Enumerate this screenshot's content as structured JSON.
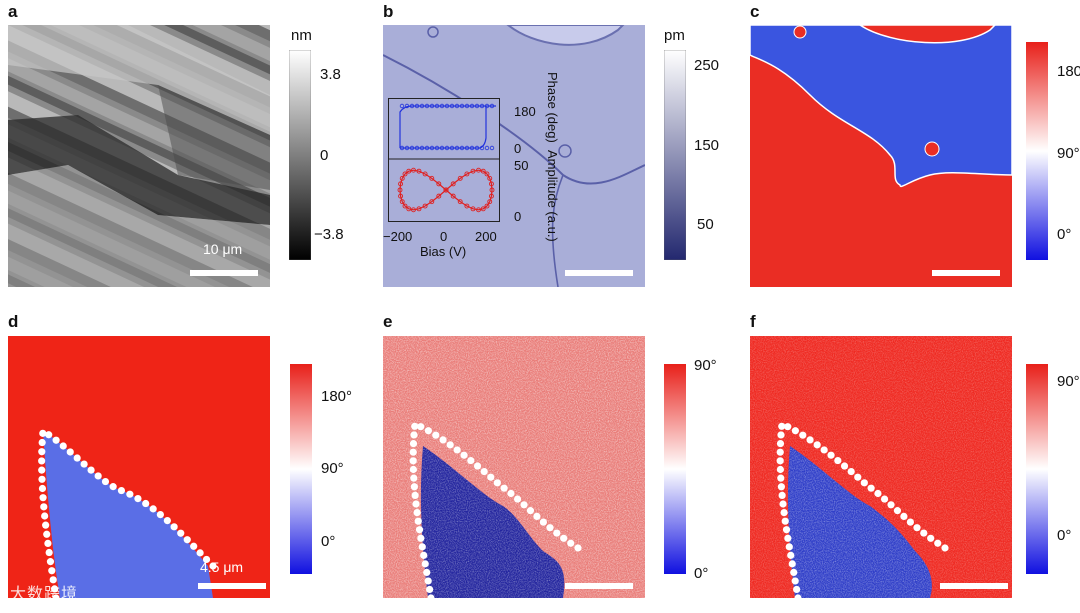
{
  "panel_labels": [
    "a",
    "b",
    "c",
    "d",
    "e",
    "f"
  ],
  "panel_a": {
    "colorbar_unit": "nm",
    "colorbar_ticks": [
      "3.8",
      "0",
      "−3.8"
    ],
    "scale_bar_label": "10 μm",
    "colors": {
      "low": "#000000",
      "high": "#ffffff"
    }
  },
  "panel_b": {
    "colorbar_unit": "pm",
    "colorbar_ticks": [
      "250",
      "150",
      "50"
    ],
    "colors": {
      "map": "#a9aed8",
      "low": "#23286f",
      "high": "#ffffff"
    },
    "inset": {
      "xlabel": "Bias (V)",
      "ylabel_top": "Phase (deg)",
      "ylabel_bottom": "Amplitude (a.u.)",
      "x_ticks": [
        "−200",
        "0",
        "200"
      ],
      "phase_ticks": [
        "180",
        "0"
      ],
      "amplitude_ticks": [
        "50",
        "0"
      ],
      "phase_color": "#2233dd",
      "amplitude_color": "#e02020"
    }
  },
  "panel_c": {
    "colorbar_ticks": [
      "180",
      "90°",
      "0°"
    ],
    "colors": {
      "high": "#e8201a",
      "mid": "#ffffff",
      "low": "#1010e0"
    }
  },
  "panel_d": {
    "colorbar_ticks": [
      "180°",
      "90°",
      "0°"
    ],
    "scale_bar_label": "4.5 μm"
  },
  "panel_e": {
    "colorbar_ticks": [
      "90°",
      "0°"
    ]
  },
  "panel_f": {
    "colorbar_ticks": [
      "90°",
      "0°"
    ]
  },
  "watermark": "大数跨境"
}
